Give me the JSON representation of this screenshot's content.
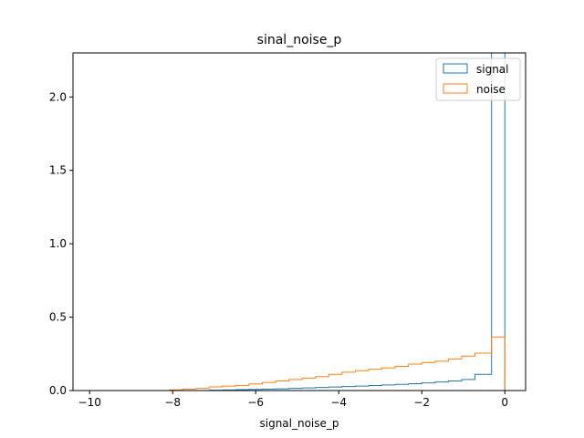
{
  "chart_data": {
    "type": "histogram",
    "title": "sinal_noise_p",
    "xlabel": "signal_noise_p",
    "ylabel": "",
    "xlim": [
      -10.4,
      0.5
    ],
    "ylim": [
      0,
      2.3
    ],
    "xticks": [
      -10,
      -8,
      -6,
      -4,
      -2,
      0
    ],
    "xtick_labels": [
      "−10",
      "−8",
      "−6",
      "−4",
      "−2",
      "0"
    ],
    "yticks": [
      0.0,
      0.5,
      1.0,
      1.5,
      2.0
    ],
    "ytick_labels": [
      "0.0",
      "0.5",
      "1.0",
      "1.5",
      "2.0"
    ],
    "grid": false,
    "legend_position": "top-right",
    "bin_edges": [
      -10.0,
      -9.68,
      -9.36,
      -9.04,
      -8.72,
      -8.4,
      -8.08,
      -7.76,
      -7.44,
      -7.12,
      -6.8,
      -6.48,
      -6.16,
      -5.84,
      -5.52,
      -5.2,
      -4.88,
      -4.56,
      -4.24,
      -3.92,
      -3.6,
      -3.28,
      -2.96,
      -2.64,
      -2.32,
      -2.0,
      -1.68,
      -1.36,
      -1.04,
      -0.72,
      -0.32,
      0.0
    ],
    "series": [
      {
        "name": "signal",
        "color": "#1f77b4",
        "values": [
          0.0,
          0.0,
          0.0,
          0.0,
          0.0,
          0.0,
          0.0,
          0.0,
          0.0,
          0.002,
          0.004,
          0.006,
          0.008,
          0.01,
          0.012,
          0.015,
          0.018,
          0.021,
          0.024,
          0.027,
          0.03,
          0.034,
          0.038,
          0.042,
          0.047,
          0.052,
          0.058,
          0.065,
          0.075,
          0.11,
          2.3
        ]
      },
      {
        "name": "noise",
        "color": "#ff7f0e",
        "values": [
          0.0,
          0.0,
          0.0,
          0.0,
          0.0,
          0.0,
          0.005,
          0.01,
          0.015,
          0.025,
          0.03,
          0.035,
          0.045,
          0.055,
          0.065,
          0.075,
          0.085,
          0.095,
          0.11,
          0.125,
          0.135,
          0.145,
          0.155,
          0.165,
          0.18,
          0.19,
          0.2,
          0.215,
          0.235,
          0.255,
          0.365
        ]
      }
    ]
  }
}
